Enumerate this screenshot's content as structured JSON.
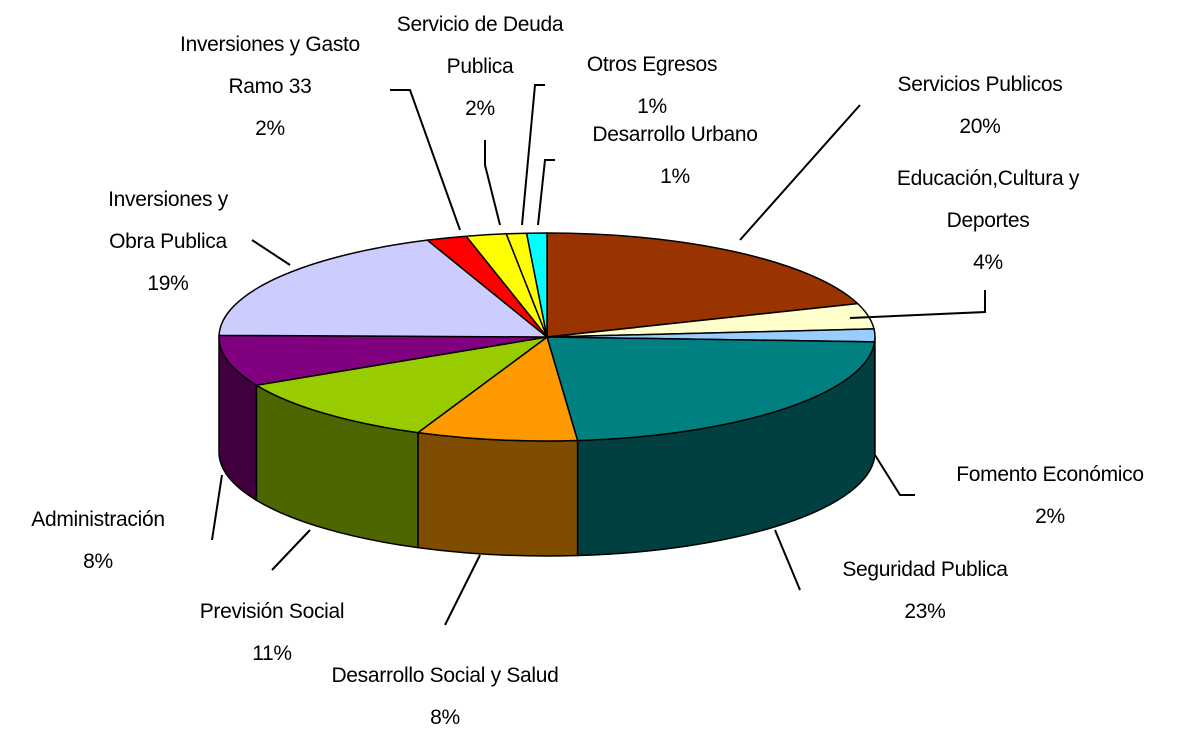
{
  "chart_data": {
    "type": "pie3d",
    "categories": [
      "Servicios Publicos",
      "Educación,Cultura y Deportes",
      "Fomento Económico",
      "Seguridad Publica",
      "Desarrollo Social y Salud",
      "Previsión Social",
      "Administración",
      "Inversiones y Obra Publica",
      "Inversiones y Gasto Ramo 33",
      "Servicio de Deuda Publica",
      "Otros Egresos",
      "Desarrollo Urbano"
    ],
    "values": [
      20,
      4,
      2,
      23,
      8,
      11,
      8,
      19,
      2,
      2,
      1,
      1
    ],
    "value_labels": [
      "20%",
      "4%",
      "2%",
      "23%",
      "8%",
      "11%",
      "8%",
      "19%",
      "2%",
      "2%",
      "1%",
      "1%"
    ],
    "colors": [
      "#993300",
      "#ffffcc",
      "#99ccff",
      "#008080",
      "#ff9900",
      "#99cc00",
      "#800080",
      "#ccccff",
      "#ff0000",
      "#ffff00",
      "#ffff00",
      "#00ffff"
    ]
  }
}
